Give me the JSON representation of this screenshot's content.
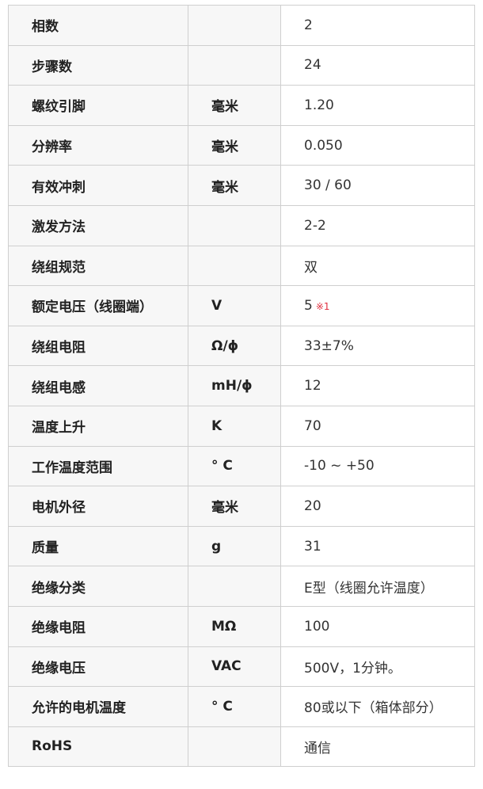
{
  "rows": [
    {
      "name": "相数",
      "unit": "",
      "value": "2"
    },
    {
      "name": "步骤数",
      "unit": "",
      "value": "24"
    },
    {
      "name": "螺纹引脚",
      "unit": "毫米",
      "value": "1.20"
    },
    {
      "name": "分辨率",
      "unit": "毫米",
      "value": "0.050"
    },
    {
      "name": "有效冲刺",
      "unit": "毫米",
      "value": "30 / 60"
    },
    {
      "name": "激发方法",
      "unit": "",
      "value": "2-2"
    },
    {
      "name": "绕组规范",
      "unit": "",
      "value": "双"
    },
    {
      "name": "额定电压（线圈端）",
      "unit": "V",
      "value": "5",
      "note": "※1"
    },
    {
      "name": "绕组电阻",
      "unit": "Ω/ϕ",
      "value": "33±7%"
    },
    {
      "name": "绕组电感",
      "unit": "mH/ϕ",
      "value": "12"
    },
    {
      "name": "温度上升",
      "unit": "K",
      "value": "70"
    },
    {
      "name": "工作温度范围",
      "unit": "° C",
      "value": "-10 ~ +50"
    },
    {
      "name": "电机外径",
      "unit": "毫米",
      "value": "20"
    },
    {
      "name": "质量",
      "unit": "g",
      "value": "31"
    },
    {
      "name": "绝缘分类",
      "unit": "",
      "value": "E型（线圈允许温度）"
    },
    {
      "name": "绝缘电阻",
      "unit": "MΩ",
      "value": "100"
    },
    {
      "name": "绝缘电压",
      "unit": "VAC",
      "value": "500V，1分钟。"
    },
    {
      "name": "允许的电机温度",
      "unit": "° C",
      "value": "80或以下（箱体部分）"
    },
    {
      "name": "RoHS",
      "unit": "",
      "value": "通信"
    }
  ],
  "colors": {
    "header_bg": "#f7f7f7",
    "border": "#cfcfcf",
    "note": "#e03040"
  }
}
